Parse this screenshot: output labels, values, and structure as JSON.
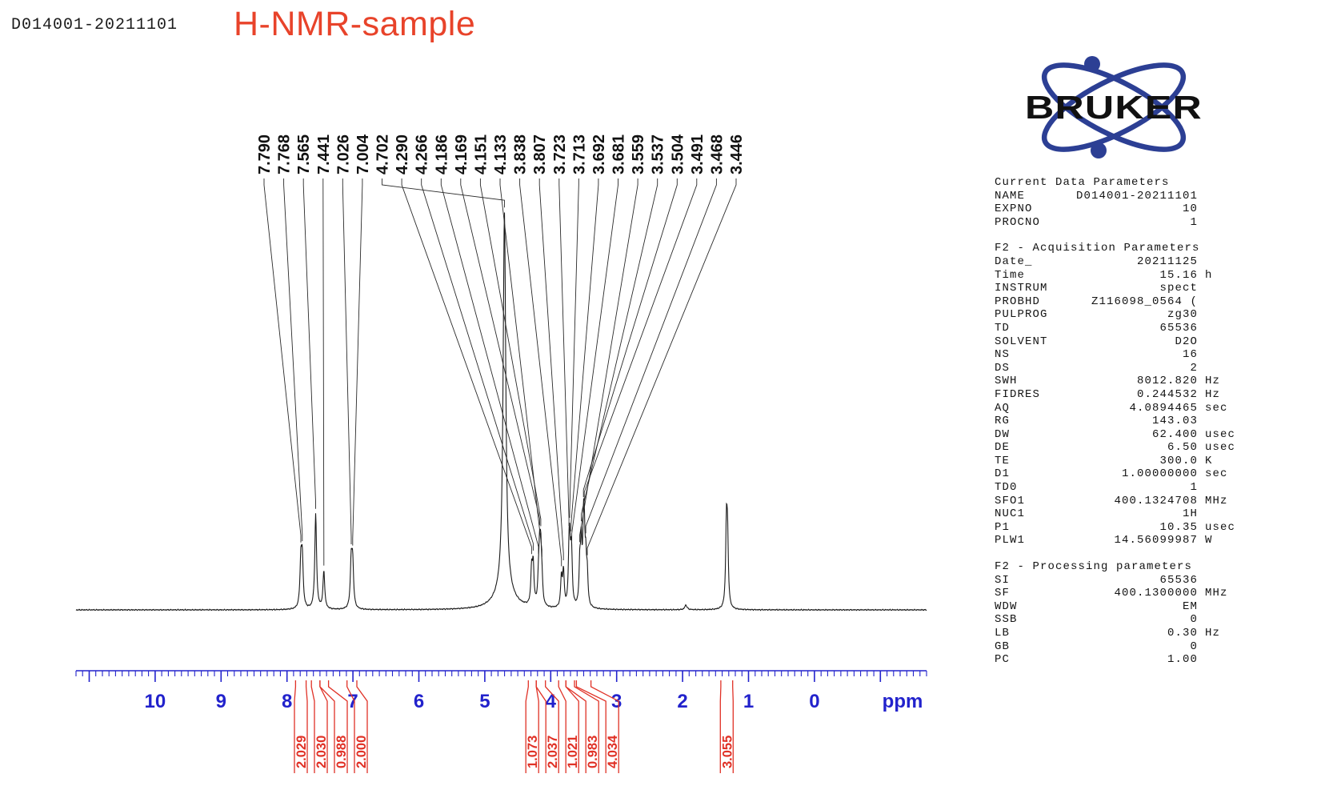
{
  "header": {
    "dataset_label": "D014001-20211101",
    "title": "H-NMR-sample",
    "title_color": "#e8432a"
  },
  "logo": {
    "text": "BRUKER",
    "orbit_color": "#2c3f94",
    "text_color": "#111111"
  },
  "parameters": {
    "sections": [
      {
        "heading": "Current Data Parameters",
        "rows": [
          {
            "label": "NAME",
            "value": "D014001-20211101",
            "unit": ""
          },
          {
            "label": "EXPNO",
            "value": "10",
            "unit": ""
          },
          {
            "label": "PROCNO",
            "value": "1",
            "unit": ""
          }
        ]
      },
      {
        "heading": "F2 - Acquisition Parameters",
        "rows": [
          {
            "label": "Date_",
            "value": "20211125",
            "unit": ""
          },
          {
            "label": "Time",
            "value": "15.16",
            "unit": "h"
          },
          {
            "label": "INSTRUM",
            "value": "spect",
            "unit": ""
          },
          {
            "label": "PROBHD",
            "value": "Z116098_0564 (",
            "unit": ""
          },
          {
            "label": "PULPROG",
            "value": "zg30",
            "unit": ""
          },
          {
            "label": "TD",
            "value": "65536",
            "unit": ""
          },
          {
            "label": "SOLVENT",
            "value": "D2O",
            "unit": ""
          },
          {
            "label": "NS",
            "value": "16",
            "unit": ""
          },
          {
            "label": "DS",
            "value": "2",
            "unit": ""
          },
          {
            "label": "SWH",
            "value": "8012.820",
            "unit": "Hz"
          },
          {
            "label": "FIDRES",
            "value": "0.244532",
            "unit": "Hz"
          },
          {
            "label": "AQ",
            "value": "4.0894465",
            "unit": "sec"
          },
          {
            "label": "RG",
            "value": "143.03",
            "unit": ""
          },
          {
            "label": "DW",
            "value": "62.400",
            "unit": "usec"
          },
          {
            "label": "DE",
            "value": "6.50",
            "unit": "usec"
          },
          {
            "label": "TE",
            "value": "300.0",
            "unit": "K"
          },
          {
            "label": "D1",
            "value": "1.00000000",
            "unit": "sec"
          },
          {
            "label": "TD0",
            "value": "1",
            "unit": ""
          },
          {
            "label": "SFO1",
            "value": "400.1324708",
            "unit": "MHz"
          },
          {
            "label": "NUC1",
            "value": "1H",
            "unit": ""
          },
          {
            "label": "P1",
            "value": "10.35",
            "unit": "usec"
          },
          {
            "label": "PLW1",
            "value": "14.56099987",
            "unit": "W"
          }
        ]
      },
      {
        "heading": "F2 - Processing parameters",
        "rows": [
          {
            "label": "SI",
            "value": "65536",
            "unit": ""
          },
          {
            "label": "SF",
            "value": "400.1300000",
            "unit": "MHz"
          },
          {
            "label": "WDW",
            "value": "EM",
            "unit": ""
          },
          {
            "label": "SSB",
            "value": "0",
            "unit": ""
          },
          {
            "label": "LB",
            "value": "0.30",
            "unit": "Hz"
          },
          {
            "label": "GB",
            "value": "0",
            "unit": ""
          },
          {
            "label": "PC",
            "value": "1.00",
            "unit": ""
          }
        ]
      }
    ]
  },
  "chart_data": {
    "type": "line",
    "title": "H-NMR-sample",
    "xlabel": "ppm",
    "x_axis": {
      "label": "ppm",
      "range_ppm": [
        11.2,
        -1.7
      ],
      "major_ticks": [
        10,
        9,
        8,
        7,
        6,
        5,
        4,
        3,
        2,
        1,
        0
      ],
      "minor_tick_step": 0.1,
      "direction": "reversed"
    },
    "peak_labels": [
      "7.790",
      "7.768",
      "7.565",
      "7.441",
      "7.026",
      "7.004",
      "4.702",
      "4.290",
      "4.266",
      "4.186",
      "4.169",
      "4.151",
      "4.133",
      "3.838",
      "3.807",
      "3.723",
      "3.713",
      "3.692",
      "3.681",
      "3.559",
      "3.537",
      "3.504",
      "3.491",
      "3.468",
      "3.446"
    ],
    "peaks": [
      {
        "ppm": 7.79,
        "h": 0.115,
        "w": 0.016
      },
      {
        "ppm": 7.768,
        "h": 0.12,
        "w": 0.016
      },
      {
        "ppm": 7.565,
        "h": 0.24,
        "w": 0.016
      },
      {
        "ppm": 7.441,
        "h": 0.095,
        "w": 0.016
      },
      {
        "ppm": 7.026,
        "h": 0.115,
        "w": 0.016
      },
      {
        "ppm": 7.004,
        "h": 0.11,
        "w": 0.016
      },
      {
        "ppm": 4.702,
        "h": 0.955,
        "w": 0.024
      },
      {
        "ppm": 4.702,
        "h": 0.05,
        "w": 0.15
      },
      {
        "ppm": 4.29,
        "h": 0.09,
        "w": 0.014
      },
      {
        "ppm": 4.266,
        "h": 0.1,
        "w": 0.014
      },
      {
        "ppm": 4.186,
        "h": 0.05,
        "w": 0.014
      },
      {
        "ppm": 4.169,
        "h": 0.12,
        "w": 0.014
      },
      {
        "ppm": 4.151,
        "h": 0.12,
        "w": 0.014
      },
      {
        "ppm": 4.133,
        "h": 0.05,
        "w": 0.014
      },
      {
        "ppm": 3.838,
        "h": 0.075,
        "w": 0.014
      },
      {
        "ppm": 3.807,
        "h": 0.09,
        "w": 0.014
      },
      {
        "ppm": 3.723,
        "h": 0.1,
        "w": 0.013
      },
      {
        "ppm": 3.713,
        "h": 0.115,
        "w": 0.013
      },
      {
        "ppm": 3.692,
        "h": 0.085,
        "w": 0.013
      },
      {
        "ppm": 3.681,
        "h": 0.08,
        "w": 0.013
      },
      {
        "ppm": 3.559,
        "h": 0.1,
        "w": 0.013
      },
      {
        "ppm": 3.537,
        "h": 0.145,
        "w": 0.013
      },
      {
        "ppm": 3.504,
        "h": 0.16,
        "w": 0.013
      },
      {
        "ppm": 3.491,
        "h": 0.14,
        "w": 0.013
      },
      {
        "ppm": 3.468,
        "h": 0.1,
        "w": 0.013
      },
      {
        "ppm": 3.446,
        "h": 0.075,
        "w": 0.013
      },
      {
        "ppm": 1.95,
        "h": 0.012,
        "w": 0.02
      },
      {
        "ppm": 1.335,
        "h": 0.2,
        "w": 0.014
      },
      {
        "ppm": 1.318,
        "h": 0.16,
        "w": 0.014
      }
    ],
    "integrals": [
      {
        "value": "2.029",
        "from": 7.87,
        "to": 7.71
      },
      {
        "value": "2.030",
        "from": 7.63,
        "to": 7.5
      },
      {
        "value": "0.988",
        "from": 7.5,
        "to": 7.37
      },
      {
        "value": "2.000",
        "from": 7.09,
        "to": 6.94
      },
      {
        "value": "1.073",
        "from": 4.34,
        "to": 4.22
      },
      {
        "value": "2.037",
        "from": 4.22,
        "to": 4.08
      },
      {
        "value": "1.021",
        "from": 3.88,
        "to": 3.77
      },
      {
        "value": "0.983",
        "from": 3.77,
        "to": 3.64
      },
      {
        "value": "4.034",
        "from": 3.61,
        "to": 3.39
      },
      {
        "value": "3.055",
        "from": 1.42,
        "to": 1.24
      }
    ],
    "colors": {
      "trace": "#1a1a1a",
      "axis": "#2222cc",
      "integral": "#e03126",
      "peak_label": "#111111"
    }
  }
}
